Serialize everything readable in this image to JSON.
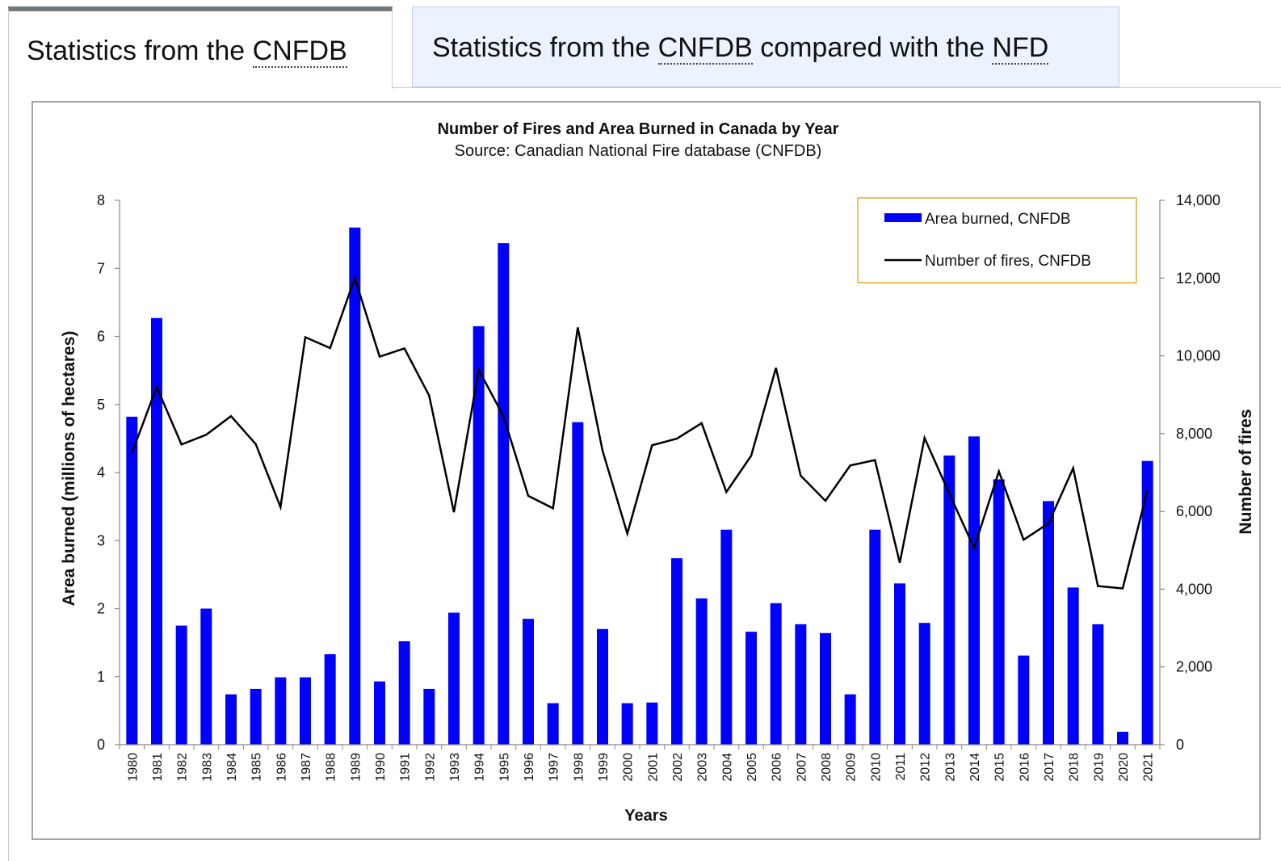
{
  "tabs": [
    {
      "parts": [
        {
          "text": "Statistics from the "
        },
        {
          "text": "CNFDB",
          "abbr": true
        }
      ]
    },
    {
      "parts": [
        {
          "text": "Statistics from the "
        },
        {
          "text": "CNFDB",
          "abbr": true
        },
        {
          "text": " compared with the "
        },
        {
          "text": "NFD",
          "abbr": true
        }
      ]
    }
  ],
  "chart_data": {
    "type": "bar",
    "title": "Number of Fires and Area Burned in Canada by Year",
    "subtitle": "Source: Canadian National Fire database (CNFDB)",
    "xlabel": "Years",
    "ylabel": "Area burned (millions of hectares)",
    "y2label": "Number of fires",
    "categories": [
      "1980",
      "1981",
      "1982",
      "1983",
      "1984",
      "1985",
      "1986",
      "1987",
      "1988",
      "1989",
      "1990",
      "1991",
      "1992",
      "1993",
      "1994",
      "1995",
      "1996",
      "1997",
      "1998",
      "1999",
      "2000",
      "2001",
      "2002",
      "2003",
      "2004",
      "2005",
      "2006",
      "2007",
      "2008",
      "2009",
      "2010",
      "2011",
      "2012",
      "2013",
      "2014",
      "2015",
      "2016",
      "2017",
      "2018",
      "2019",
      "2020",
      "2021"
    ],
    "series": [
      {
        "name": "Area burned, CNFDB",
        "type": "bar",
        "axis": "left",
        "color": "#0000ff",
        "values": [
          4.82,
          6.27,
          1.75,
          2.0,
          0.74,
          0.82,
          0.99,
          0.99,
          1.33,
          7.6,
          0.93,
          1.52,
          0.82,
          1.94,
          6.15,
          7.37,
          1.85,
          0.61,
          4.74,
          1.7,
          0.61,
          0.62,
          2.74,
          2.15,
          3.16,
          1.66,
          2.08,
          1.77,
          1.64,
          0.74,
          3.16,
          2.37,
          1.79,
          4.25,
          4.53,
          3.9,
          1.31,
          3.58,
          2.31,
          1.77,
          0.19,
          4.17
        ]
      },
      {
        "name": "Number of fires, CNFDB",
        "type": "line",
        "axis": "right",
        "color": "#000000",
        "values": [
          7500,
          9200,
          7720,
          7970,
          8450,
          7730,
          6110,
          10480,
          10200,
          12000,
          9980,
          10190,
          8980,
          5980,
          9640,
          8450,
          6400,
          6080,
          10730,
          7560,
          5430,
          7700,
          7870,
          8270,
          6500,
          7430,
          9690,
          6920,
          6270,
          7180,
          7320,
          4680,
          7890,
          6460,
          5060,
          7030,
          5270,
          5690,
          7110,
          4080,
          4020,
          6550
        ]
      }
    ],
    "ylim": [
      0,
      8
    ],
    "yticks": [
      0,
      1,
      2,
      3,
      4,
      5,
      6,
      7,
      8
    ],
    "y2lim": [
      0,
      14000
    ],
    "y2ticks": [
      "0",
      "2,000",
      "4,000",
      "6,000",
      "8,000",
      "10,000",
      "12,000",
      "14,000"
    ],
    "legend_position": "top-right",
    "grid": false
  }
}
